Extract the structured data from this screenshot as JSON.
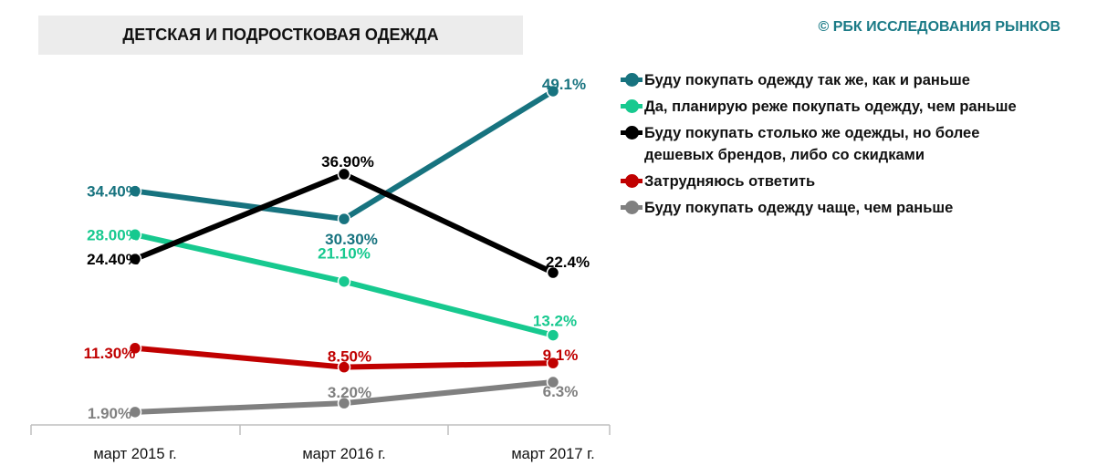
{
  "title": "ДЕТСКАЯ И ПОДРОСТКОВАЯ ОДЕЖДА",
  "source": "© РБК ИССЛЕДОВАНИЯ РЫНКОВ",
  "chart_data": {
    "type": "line",
    "categories": [
      "март 2015 г.",
      "март 2016 г.",
      "март 2017 г."
    ],
    "ylim": [
      0,
      55
    ],
    "grid": false,
    "legend_position": "right",
    "series": [
      {
        "name": "Буду покупать одежду так же, как и раньше",
        "color": "#17737f",
        "values": [
          34.4,
          30.3,
          49.1
        ],
        "labels": [
          "34.40%",
          "30.30%",
          "49.1%"
        ]
      },
      {
        "name": "Да, планирую реже покупать одежду, чем раньше",
        "color": "#17c98f",
        "values": [
          28.0,
          21.1,
          13.2
        ],
        "labels": [
          "28.00%",
          "21.10%",
          "13.2%"
        ]
      },
      {
        "name": "Буду покупать столько же одежды, но более дешевых брендов, либо со скидками",
        "color": "#000000",
        "values": [
          24.4,
          36.9,
          22.4
        ],
        "labels": [
          "24.40%",
          "36.90%",
          "22.4%"
        ]
      },
      {
        "name": "Затрудняюсь ответить",
        "color": "#c00000",
        "values": [
          11.3,
          8.5,
          9.1
        ],
        "labels": [
          "11.30%",
          "8.50%",
          "9.1%"
        ]
      },
      {
        "name": "Буду покупать одежду чаще, чем раньше",
        "color": "#808080",
        "values": [
          1.9,
          3.2,
          6.3
        ],
        "labels": [
          "1.90%",
          "3.20%",
          "6.3%"
        ]
      }
    ]
  }
}
